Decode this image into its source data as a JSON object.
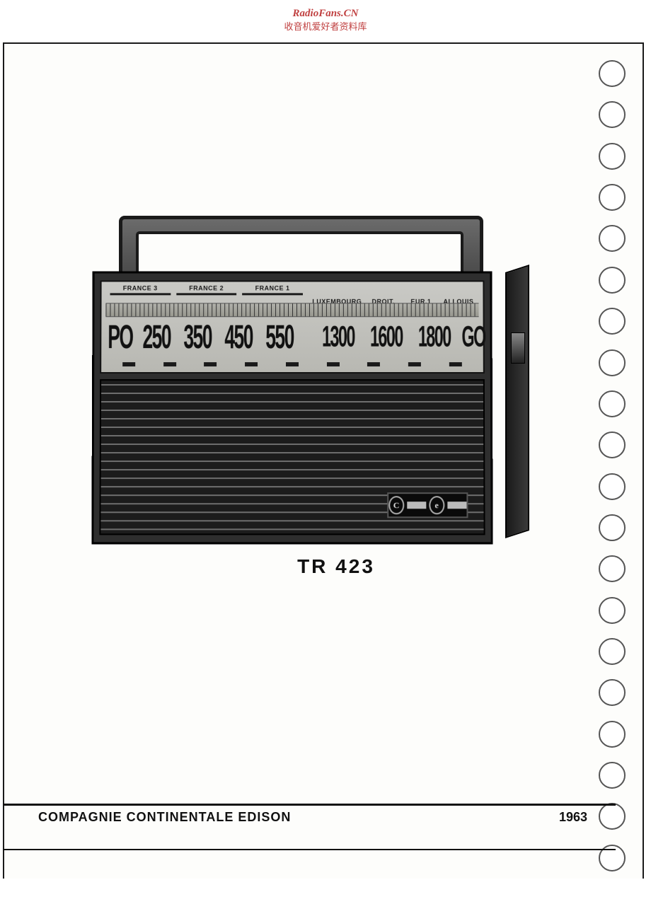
{
  "watermark": {
    "line1": "RadioFans.CN",
    "line2": "收音机爱好者资料库",
    "color": "#c04040"
  },
  "binder": {
    "hole_count": 20
  },
  "radio": {
    "stations_left": [
      "FRANCE 3",
      "FRANCE 2",
      "FRANCE 1"
    ],
    "stations_right": [
      "LUXEMBOURG",
      "DROIT.",
      "EUR.1",
      "ALLOUIS"
    ],
    "freq_left_label": "PO",
    "freq_left": [
      "250",
      "350",
      "450",
      "550"
    ],
    "freq_right": [
      "1300",
      "1600",
      "1800"
    ],
    "freq_right_label": "GO",
    "dash_count": 9,
    "badge_letters": [
      "C",
      "e"
    ],
    "model": "TR 423"
  },
  "footer": {
    "company": "COMPAGNIE CONTINENTALE EDISON",
    "year": "1963"
  },
  "colors": {
    "ink": "#111111",
    "paper": "#fdfdfb",
    "panel": "#c2c2bc",
    "body": "#2e2e2e"
  }
}
